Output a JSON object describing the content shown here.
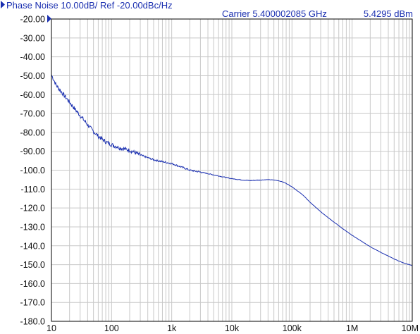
{
  "header": {
    "title": "Phase Noise 10.00dB/ Ref -20.00dBc/Hz",
    "carrier": "Carrier 5.400002085 GHz",
    "power": "5.4295 dBm"
  },
  "colors": {
    "trace": "#1a2fb0",
    "text": "#1a2fb0",
    "grid": "#c8c8c8",
    "frame": "#000000",
    "background": "#ffffff"
  },
  "chart_data": {
    "type": "line",
    "title": "Phase Noise 10.00dB/ Ref -20.00dBc/Hz",
    "xscale": "log",
    "xlim": [
      10,
      10000000
    ],
    "ylim": [
      -180,
      -20
    ],
    "grid": true,
    "x_ticks": [
      {
        "value": 10,
        "label": "10"
      },
      {
        "value": 100,
        "label": "100"
      },
      {
        "value": 1000,
        "label": "1k"
      },
      {
        "value": 10000,
        "label": "10k"
      },
      {
        "value": 100000,
        "label": "100k"
      },
      {
        "value": 1000000,
        "label": "1M"
      },
      {
        "value": 10000000,
        "label": "10M"
      }
    ],
    "y_ticks": [
      {
        "value": -20,
        "label": "-20.00"
      },
      {
        "value": -30,
        "label": "-30.00"
      },
      {
        "value": -40,
        "label": "-40.00"
      },
      {
        "value": -50,
        "label": "-50.00"
      },
      {
        "value": -60,
        "label": "-60.00"
      },
      {
        "value": -70,
        "label": "-70.00"
      },
      {
        "value": -80,
        "label": "-80.00"
      },
      {
        "value": -90,
        "label": "-90.00"
      },
      {
        "value": -100,
        "label": "-100.0"
      },
      {
        "value": -110,
        "label": "-110.0"
      },
      {
        "value": -120,
        "label": "-120.0"
      },
      {
        "value": -130,
        "label": "-130.0"
      },
      {
        "value": -140,
        "label": "-140.0"
      },
      {
        "value": -150,
        "label": "-150.0"
      },
      {
        "value": -160,
        "label": "-160.0"
      },
      {
        "value": -170,
        "label": "-170.0"
      },
      {
        "value": -180,
        "label": "-180.0"
      }
    ],
    "series": [
      {
        "x": [
          10,
          12,
          15,
          20,
          25,
          30,
          40,
          50,
          60,
          80,
          100,
          120,
          150,
          200,
          300,
          500,
          700,
          1000,
          1500,
          2000,
          3000,
          5000,
          7000,
          10000,
          15000,
          20000,
          30000,
          40000,
          50000,
          60000,
          70000,
          80000,
          100000,
          150000,
          200000,
          300000,
          500000,
          700000,
          1000000,
          2000000,
          3000000,
          5000000,
          7000000,
          10000000
        ],
        "y": [
          -49.5,
          -55,
          -59,
          -64,
          -68,
          -71,
          -76,
          -79.5,
          -82,
          -85,
          -86.5,
          -87.5,
          -88.5,
          -89.5,
          -92,
          -94.5,
          -95.5,
          -96.5,
          -98.5,
          -100,
          -101,
          -102.5,
          -103.5,
          -104.5,
          -105.2,
          -105.5,
          -105.2,
          -105,
          -105.2,
          -105.6,
          -106.2,
          -107,
          -108.8,
          -113,
          -117,
          -122,
          -127.5,
          -131,
          -134.5,
          -140.5,
          -143.5,
          -147,
          -149,
          -150.5
        ]
      }
    ]
  }
}
